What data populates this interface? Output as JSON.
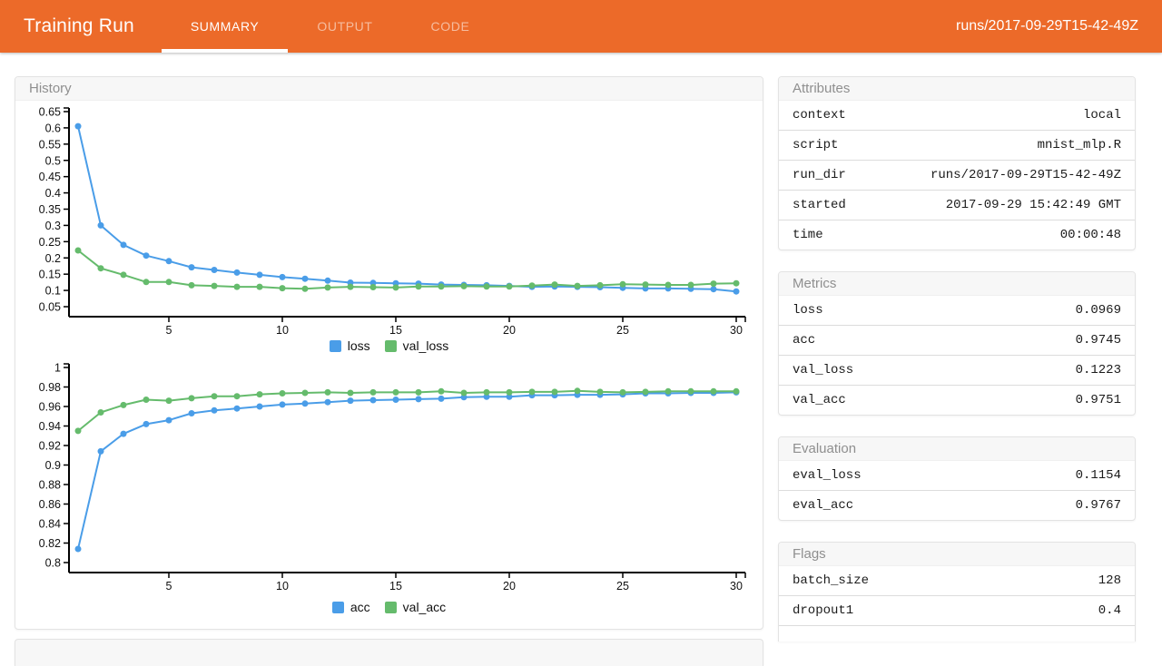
{
  "header": {
    "title": "Training Run",
    "tabs": [
      {
        "label": "SUMMARY",
        "active": true
      },
      {
        "label": "OUTPUT",
        "active": false
      },
      {
        "label": "CODE",
        "active": false
      }
    ],
    "run_label": "runs/2017-09-29T15-42-49Z"
  },
  "colors": {
    "header_bg": "#EC6A29",
    "loss_series_blue": "#4A9DE8",
    "val_series_green": "#65BB6C",
    "axis": "#000000"
  },
  "history_panel": {
    "title": "History"
  },
  "chart_data": [
    {
      "type": "line",
      "title": "",
      "xlabel": "",
      "ylabel": "",
      "x": [
        1,
        2,
        3,
        4,
        5,
        6,
        7,
        8,
        9,
        10,
        11,
        12,
        13,
        14,
        15,
        16,
        17,
        18,
        19,
        20,
        21,
        22,
        23,
        24,
        25,
        26,
        27,
        28,
        29,
        30
      ],
      "x_label_ticks": [
        5,
        10,
        15,
        20,
        25,
        30
      ],
      "ylim": [
        0.05,
        0.65
      ],
      "ytick_step": 0.05,
      "grid": false,
      "legend_position": "bottom",
      "series": [
        {
          "name": "loss",
          "color": "#4A9DE8",
          "values": [
            0.605,
            0.3,
            0.24,
            0.207,
            0.19,
            0.171,
            0.163,
            0.155,
            0.148,
            0.141,
            0.136,
            0.13,
            0.124,
            0.123,
            0.122,
            0.121,
            0.118,
            0.117,
            0.116,
            0.114,
            0.111,
            0.112,
            0.111,
            0.11,
            0.108,
            0.106,
            0.106,
            0.105,
            0.104,
            0.097
          ]
        },
        {
          "name": "val_loss",
          "color": "#65BB6C",
          "values": [
            0.223,
            0.168,
            0.148,
            0.126,
            0.126,
            0.116,
            0.114,
            0.111,
            0.111,
            0.107,
            0.105,
            0.109,
            0.111,
            0.11,
            0.109,
            0.112,
            0.112,
            0.113,
            0.112,
            0.112,
            0.115,
            0.118,
            0.114,
            0.116,
            0.119,
            0.118,
            0.117,
            0.117,
            0.121,
            0.122
          ]
        }
      ]
    },
    {
      "type": "line",
      "title": "",
      "xlabel": "",
      "ylabel": "",
      "x": [
        1,
        2,
        3,
        4,
        5,
        6,
        7,
        8,
        9,
        10,
        11,
        12,
        13,
        14,
        15,
        16,
        17,
        18,
        19,
        20,
        21,
        22,
        23,
        24,
        25,
        26,
        27,
        28,
        29,
        30
      ],
      "x_label_ticks": [
        5,
        10,
        15,
        20,
        25,
        30
      ],
      "ylim": [
        0.8,
        1.0
      ],
      "ytick_step": 0.02,
      "grid": false,
      "legend_position": "bottom",
      "series": [
        {
          "name": "acc",
          "color": "#4A9DE8",
          "values": [
            0.814,
            0.914,
            0.932,
            0.942,
            0.946,
            0.953,
            0.956,
            0.958,
            0.96,
            0.962,
            0.963,
            0.9645,
            0.966,
            0.9665,
            0.967,
            0.9675,
            0.968,
            0.9695,
            0.97,
            0.97,
            0.9715,
            0.9715,
            0.972,
            0.972,
            0.9725,
            0.9735,
            0.9735,
            0.974,
            0.974,
            0.9745
          ]
        },
        {
          "name": "val_acc",
          "color": "#65BB6C",
          "values": [
            0.935,
            0.954,
            0.9615,
            0.967,
            0.966,
            0.9685,
            0.9705,
            0.9705,
            0.9725,
            0.9735,
            0.974,
            0.9745,
            0.974,
            0.9745,
            0.9745,
            0.9745,
            0.9755,
            0.974,
            0.9745,
            0.9745,
            0.975,
            0.975,
            0.976,
            0.975,
            0.9745,
            0.975,
            0.9755,
            0.9755,
            0.9755,
            0.9755
          ]
        }
      ]
    }
  ],
  "side_panels": [
    {
      "title": "Attributes",
      "rows": [
        {
          "key": "context",
          "value": "local"
        },
        {
          "key": "script",
          "value": "mnist_mlp.R"
        },
        {
          "key": "run_dir",
          "value": "runs/2017-09-29T15-42-49Z"
        },
        {
          "key": "started",
          "value": "2017-09-29 15:42:49 GMT"
        },
        {
          "key": "time",
          "value": "00:00:48"
        }
      ]
    },
    {
      "title": "Metrics",
      "rows": [
        {
          "key": "loss",
          "value": "0.0969"
        },
        {
          "key": "acc",
          "value": "0.9745"
        },
        {
          "key": "val_loss",
          "value": "0.1223"
        },
        {
          "key": "val_acc",
          "value": "0.9751"
        }
      ]
    },
    {
      "title": "Evaluation",
      "rows": [
        {
          "key": "eval_loss",
          "value": "0.1154"
        },
        {
          "key": "eval_acc",
          "value": "0.9767"
        }
      ]
    },
    {
      "title": "Flags",
      "continues": true,
      "rows": [
        {
          "key": "batch_size",
          "value": "128"
        },
        {
          "key": "dropout1",
          "value": "0.4"
        }
      ]
    }
  ]
}
